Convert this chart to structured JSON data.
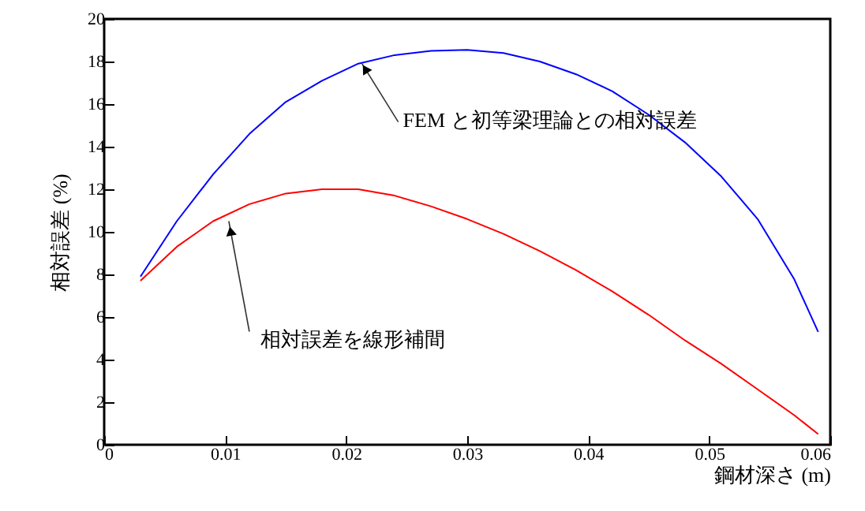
{
  "chart_data": {
    "type": "line",
    "xlabel": "鋼材深さ (m)",
    "ylabel": "相対誤差 (%)",
    "x": [
      0.003,
      0.006,
      0.009,
      0.012,
      0.015,
      0.018,
      0.021,
      0.024,
      0.027,
      0.03,
      0.033,
      0.036,
      0.039,
      0.042,
      0.045,
      0.048,
      0.051,
      0.054,
      0.057,
      0.059
    ],
    "series": [
      {
        "color": "#0000ff",
        "values": [
          7.9,
          10.5,
          12.7,
          14.6,
          16.1,
          17.1,
          17.9,
          18.3,
          18.5,
          18.55,
          18.4,
          18.0,
          17.4,
          16.6,
          15.5,
          14.2,
          12.6,
          10.6,
          7.8,
          5.3
        ]
      },
      {
        "color": "#ff0000",
        "values": [
          7.7,
          9.3,
          10.5,
          11.3,
          11.8,
          12.0,
          12.0,
          11.7,
          11.2,
          10.6,
          9.9,
          9.1,
          8.2,
          7.2,
          6.1,
          4.9,
          3.8,
          2.6,
          1.4,
          0.5
        ]
      }
    ],
    "annotations": [
      {
        "text": "FEM と初等梁理論との相対誤差",
        "x": 0.0213,
        "y": 17.9
      },
      {
        "text": "相対誤差を線形補間",
        "x": 0.0103,
        "y": 10.5
      }
    ],
    "xlim": [
      0,
      0.06
    ],
    "xticks": [
      0,
      0.01,
      0.02,
      0.03,
      0.04,
      0.05,
      0.06
    ],
    "ylim": [
      0,
      20
    ],
    "yticks": [
      0,
      2,
      4,
      6,
      8,
      10,
      12,
      14,
      16,
      18,
      20
    ],
    "grid": false,
    "marker": "none",
    "line_style": "solid"
  }
}
